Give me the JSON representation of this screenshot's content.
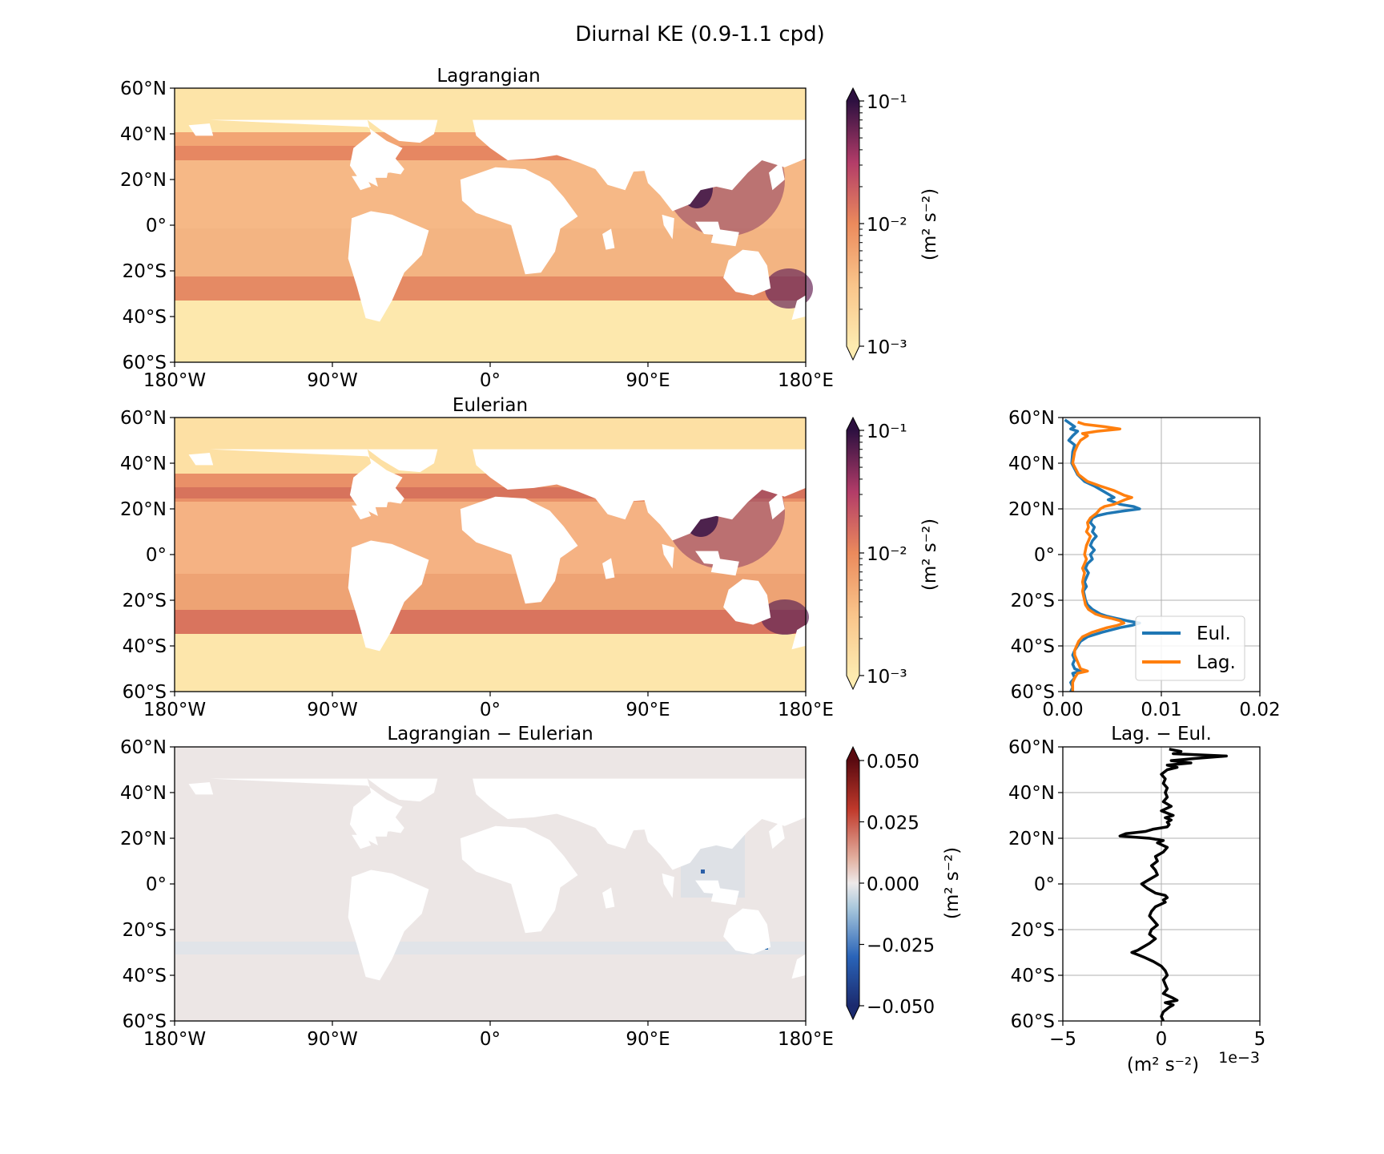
{
  "figure": {
    "suptitle": "Diurnal KE (0.9-1.1 cpd)"
  },
  "colors": {
    "ke_low": "#fdebb0",
    "ke_mid": "#eb8a5c",
    "ke_high": "#2d1040",
    "diff_neg": "#1b2a6e",
    "diff_zero": "#eeeaea",
    "diff_pos": "#5a0a10",
    "land": "#ffffff",
    "eul": "#1f77b4",
    "lag": "#ff7f0e",
    "diff_line": "#000000",
    "grid": "#b0b0b0"
  },
  "lat_ticks": [
    "60°N",
    "40°N",
    "20°N",
    "0°",
    "20°S",
    "40°S",
    "60°S"
  ],
  "lon_ticks": [
    "180°W",
    "90°W",
    "0°",
    "90°E",
    "180°E"
  ],
  "maps": {
    "lagrangian": {
      "title": "Lagrangian"
    },
    "eulerian": {
      "title": "Eulerian"
    },
    "difference": {
      "title": "Lagrangian − Eulerian"
    }
  },
  "colorbars": {
    "ke": {
      "label": "(m² s⁻²)",
      "ticks": [
        "10⁻¹",
        "10⁻²",
        "10⁻³"
      ],
      "scale": "log",
      "range": [
        0.001,
        0.1
      ]
    },
    "diff": {
      "label": "(m² s⁻²)",
      "ticks": [
        "0.050",
        "0.025",
        "0.000",
        "−0.025",
        "−0.050"
      ],
      "scale": "linear",
      "range": [
        -0.05,
        0.05
      ]
    }
  },
  "chart_data": [
    {
      "type": "line",
      "title": "",
      "xlabel": "",
      "ylabel": "",
      "xlim": [
        0,
        0.02
      ],
      "ylim": [
        -60,
        60
      ],
      "x_ticks": [
        "0.00",
        "0.01",
        "0.02"
      ],
      "grid": true,
      "legend_placement": "lower-right",
      "series": [
        {
          "name": "Eul.",
          "color": "#1f77b4",
          "lat": [
            59,
            56,
            55,
            54,
            52,
            50,
            48,
            45,
            40,
            35,
            32,
            30,
            28,
            26,
            25,
            24,
            22,
            21,
            20,
            19,
            18,
            17,
            16,
            14,
            12,
            10,
            8,
            6,
            4,
            2,
            0,
            -2,
            -4,
            -6,
            -8,
            -10,
            -12,
            -14,
            -16,
            -18,
            -20,
            -22,
            -24,
            -26,
            -27,
            -28,
            -29,
            -30,
            -31,
            -32,
            -34,
            -36,
            -38,
            -40,
            -42,
            -44,
            -46,
            -48,
            -50,
            -51,
            -52,
            -54,
            -56,
            -58,
            -60
          ],
          "values": [
            0.0002,
            0.0012,
            0.0008,
            0.0015,
            0.001,
            0.0006,
            0.0012,
            0.001,
            0.0009,
            0.0015,
            0.0022,
            0.0032,
            0.004,
            0.0048,
            0.0052,
            0.0046,
            0.0058,
            0.0072,
            0.0078,
            0.006,
            0.0045,
            0.0035,
            0.003,
            0.0028,
            0.0032,
            0.003,
            0.0034,
            0.003,
            0.0028,
            0.0032,
            0.0028,
            0.003,
            0.0025,
            0.0023,
            0.0026,
            0.0024,
            0.0022,
            0.0024,
            0.0021,
            0.0022,
            0.0023,
            0.0025,
            0.003,
            0.0038,
            0.0045,
            0.0055,
            0.0065,
            0.0078,
            0.007,
            0.0058,
            0.004,
            0.0025,
            0.0018,
            0.0015,
            0.0012,
            0.001,
            0.0012,
            0.001,
            0.0012,
            0.0018,
            0.001,
            0.0012,
            0.0008,
            0.001,
            0.0008
          ]
        },
        {
          "name": "Lag.",
          "color": "#ff7f0e",
          "lat": [
            58,
            57,
            56,
            55,
            54,
            53,
            52,
            50,
            48,
            45,
            40,
            35,
            32,
            30,
            28,
            26,
            25,
            24,
            22,
            21,
            20,
            19,
            18,
            17,
            16,
            14,
            12,
            10,
            8,
            6,
            4,
            2,
            0,
            -2,
            -4,
            -6,
            -8,
            -10,
            -12,
            -14,
            -16,
            -18,
            -20,
            -22,
            -24,
            -26,
            -27,
            -28,
            -29,
            -30,
            -31,
            -32,
            -34,
            -36,
            -38,
            -40,
            -42,
            -44,
            -46,
            -48,
            -50,
            -51,
            -52,
            -54,
            -56,
            -58,
            -60
          ],
          "values": [
            0.0015,
            0.0022,
            0.0042,
            0.0058,
            0.0035,
            0.002,
            0.0025,
            0.0018,
            0.0015,
            0.0012,
            0.001,
            0.0016,
            0.0025,
            0.0038,
            0.0052,
            0.0062,
            0.007,
            0.0063,
            0.0052,
            0.0042,
            0.0038,
            0.0036,
            0.0034,
            0.0031,
            0.0028,
            0.0025,
            0.0026,
            0.0024,
            0.0028,
            0.0026,
            0.0024,
            0.0023,
            0.0022,
            0.0024,
            0.0022,
            0.002,
            0.0022,
            0.0021,
            0.002,
            0.0021,
            0.002,
            0.0021,
            0.0022,
            0.0023,
            0.0026,
            0.0033,
            0.004,
            0.005,
            0.0058,
            0.0062,
            0.0055,
            0.0045,
            0.003,
            0.002,
            0.0016,
            0.0014,
            0.0012,
            0.0012,
            0.0014,
            0.0016,
            0.0018,
            0.0025,
            0.0015,
            0.0012,
            0.001,
            0.001,
            0.001
          ]
        }
      ]
    },
    {
      "type": "line",
      "title": "Lag. − Eul.",
      "xlabel": "(m² s⁻²)",
      "x_offset_label": "1e−3",
      "ylabel": "",
      "xlim": [
        -5,
        5
      ],
      "ylim": [
        -60,
        60
      ],
      "x_ticks": [
        "−5",
        "0",
        "5"
      ],
      "grid": true,
      "series": [
        {
          "name": "",
          "color": "#000000",
          "lat": [
            59,
            58,
            57,
            56,
            55,
            54,
            53,
            52,
            51,
            50,
            48,
            46,
            44,
            42,
            40,
            38,
            36,
            34,
            32,
            30,
            29,
            28,
            27,
            26,
            25,
            24,
            23,
            22,
            21,
            20,
            19,
            18,
            16,
            14,
            12,
            10,
            8,
            6,
            4,
            2,
            0,
            -2,
            -4,
            -5,
            -6,
            -7,
            -8,
            -10,
            -12,
            -14,
            -16,
            -18,
            -20,
            -22,
            -24,
            -26,
            -28,
            -29,
            -30,
            -31,
            -32,
            -34,
            -36,
            -38,
            -40,
            -42,
            -44,
            -46,
            -48,
            -50,
            -51,
            -52,
            -53,
            -54,
            -56,
            -58,
            -60
          ],
          "values": [
            0.4,
            1.0,
            0.6,
            3.3,
            1.8,
            0.5,
            1.5,
            0.3,
            0.8,
            0.3,
            0.0,
            0.2,
            0.1,
            0.3,
            0.2,
            0.3,
            0.1,
            0.5,
            0.0,
            0.6,
            0.2,
            0.5,
            0.3,
            0.4,
            0.3,
            -0.4,
            -0.8,
            -1.8,
            -2.1,
            -0.6,
            0.1,
            -0.2,
            0.3,
            0.1,
            -0.3,
            -0.2,
            -0.5,
            -0.3,
            -0.2,
            -0.6,
            -1.0,
            -0.7,
            -0.3,
            0.2,
            0.3,
            0.1,
            0.2,
            -0.3,
            -0.5,
            -0.6,
            -0.4,
            -0.2,
            -0.5,
            -0.6,
            -0.3,
            -0.6,
            -1.0,
            -1.2,
            -1.5,
            -1.2,
            -0.9,
            -0.4,
            0.0,
            0.2,
            0.3,
            0.1,
            0.2,
            0.3,
            0.1,
            0.6,
            0.8,
            0.2,
            0.6,
            0.4,
            0.1,
            0.0,
            0.1
          ]
        }
      ]
    }
  ]
}
